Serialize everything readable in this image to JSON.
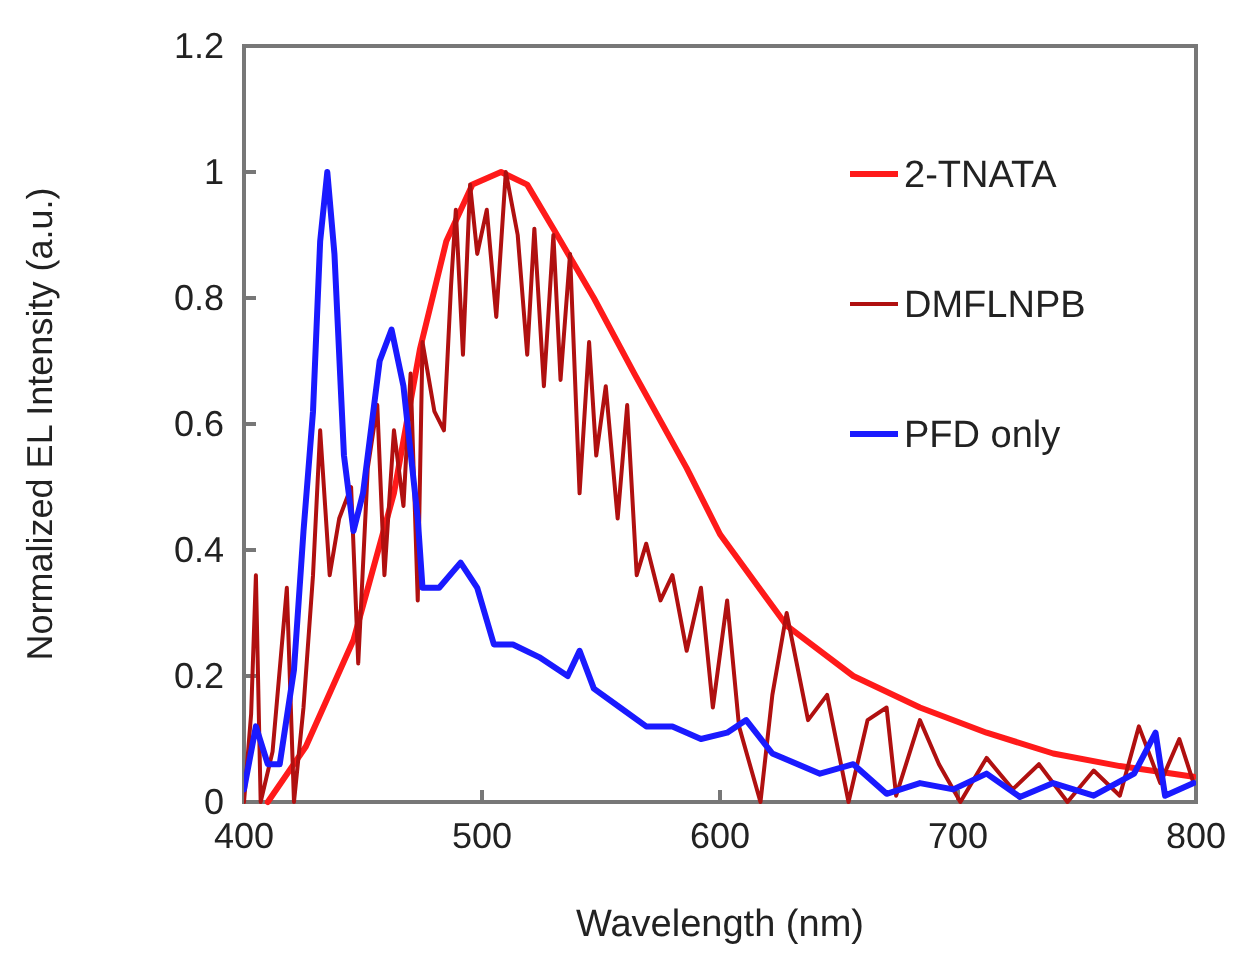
{
  "chart_data": {
    "type": "line",
    "xlabel": "Wavelength  (nm)",
    "ylabel": "Normalized EL Intensity (a.u.)",
    "xlim": [
      400,
      800
    ],
    "xticks": [
      400,
      500,
      600,
      700,
      800
    ],
    "ylim": [
      0,
      1.2
    ],
    "yticks": [
      0,
      0.2,
      0.4,
      0.6,
      0.8,
      1,
      1.2
    ],
    "grid": false,
    "legend": "top right",
    "marker": "none",
    "line_style": "solid",
    "series": [
      {
        "name": "2-TNATA",
        "color": "#ff1a1a",
        "x": [
          410,
          426,
          446,
          463,
          474,
          485,
          496,
          508,
          519,
          530,
          547,
          564,
          586,
          600,
          628,
          656,
          684,
          712,
          740,
          768,
          799
        ],
        "values": [
          0,
          0.088,
          0.257,
          0.49,
          0.72,
          0.89,
          0.98,
          1.0,
          0.98,
          0.91,
          0.8,
          0.68,
          0.53,
          0.425,
          0.28,
          0.2,
          0.15,
          0.11,
          0.077,
          0.057,
          0.04
        ]
      },
      {
        "name": "DMFLNPB",
        "color": "#b01010",
        "x": [
          400,
          403,
          405,
          407,
          412,
          418,
          421,
          425,
          429,
          432,
          436,
          440,
          445,
          448,
          452,
          456,
          459,
          463,
          467,
          470,
          473,
          475,
          480,
          484,
          487,
          489,
          492,
          495,
          498,
          502,
          506,
          510,
          515,
          519,
          522,
          526,
          530,
          533,
          537,
          541,
          545,
          548,
          552,
          557,
          561,
          565,
          569,
          575,
          580,
          586,
          592,
          597,
          603,
          608,
          617,
          622,
          628,
          637,
          645,
          654,
          662,
          670,
          674,
          684,
          692,
          701,
          712,
          723,
          734,
          746,
          757,
          768,
          776,
          785,
          793,
          799
        ],
        "values": [
          0,
          0.14,
          0.36,
          0,
          0.08,
          0.34,
          0,
          0.15,
          0.36,
          0.59,
          0.36,
          0.45,
          0.5,
          0.22,
          0.53,
          0.63,
          0.36,
          0.59,
          0.47,
          0.68,
          0.32,
          0.73,
          0.62,
          0.59,
          0.82,
          0.94,
          0.71,
          0.98,
          0.87,
          0.94,
          0.77,
          1.0,
          0.9,
          0.71,
          0.91,
          0.66,
          0.9,
          0.67,
          0.87,
          0.49,
          0.73,
          0.55,
          0.66,
          0.45,
          0.63,
          0.36,
          0.41,
          0.32,
          0.36,
          0.24,
          0.34,
          0.15,
          0.32,
          0.12,
          0,
          0.17,
          0.3,
          0.13,
          0.17,
          0,
          0.13,
          0.15,
          0.01,
          0.13,
          0.06,
          0,
          0.07,
          0.02,
          0.06,
          0,
          0.05,
          0.01,
          0.12,
          0.03,
          0.1,
          0.03
        ]
      },
      {
        "name": "PFD only",
        "color": "#1a1aff",
        "x": [
          400,
          405,
          410,
          415,
          421,
          425,
          429,
          432,
          435,
          438,
          442,
          446,
          450,
          457,
          462,
          467,
          473,
          475,
          482,
          491,
          498,
          505,
          513,
          524,
          536,
          541,
          547,
          558,
          569,
          580,
          592,
          603,
          611,
          622,
          642,
          656,
          670,
          684,
          698,
          712,
          726,
          740,
          757,
          774,
          783,
          787,
          799
        ],
        "values": [
          0.02,
          0.12,
          0.06,
          0.06,
          0.21,
          0.43,
          0.62,
          0.89,
          1.0,
          0.87,
          0.55,
          0.43,
          0.49,
          0.7,
          0.75,
          0.66,
          0.45,
          0.34,
          0.34,
          0.38,
          0.34,
          0.25,
          0.25,
          0.23,
          0.2,
          0.24,
          0.18,
          0.15,
          0.12,
          0.12,
          0.1,
          0.11,
          0.13,
          0.077,
          0.045,
          0.06,
          0.013,
          0.03,
          0.02,
          0.045,
          0.008,
          0.03,
          0.01,
          0.045,
          0.11,
          0.01,
          0.03
        ]
      }
    ]
  }
}
